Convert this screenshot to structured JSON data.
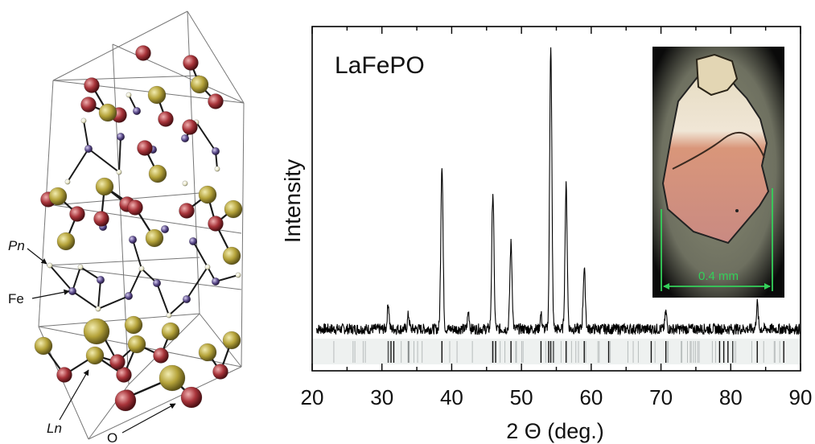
{
  "structure": {
    "labels": {
      "pn": "Pn",
      "fe": "Fe",
      "ln": "Ln",
      "o": "O"
    },
    "colors": {
      "ln": "#b5a33a",
      "o": "#a8343a",
      "fe": "#5a4a8a",
      "pn": "#e8e6c8",
      "cell": "#777777"
    }
  },
  "chart_data": {
    "type": "line",
    "title": "LaFePO",
    "xlabel": "2 Θ (deg.)",
    "ylabel": "Intensity",
    "xlim": [
      20,
      90
    ],
    "xticks": [
      20,
      30,
      40,
      50,
      60,
      70,
      80,
      90
    ],
    "yticks_labeled": false,
    "peaks": [
      {
        "x": 30.9,
        "h": 0.09
      },
      {
        "x": 33.8,
        "h": 0.05
      },
      {
        "x": 38.6,
        "h": 0.58
      },
      {
        "x": 42.4,
        "h": 0.06
      },
      {
        "x": 45.9,
        "h": 0.48
      },
      {
        "x": 48.5,
        "h": 0.3
      },
      {
        "x": 52.8,
        "h": 0.05
      },
      {
        "x": 54.2,
        "h": 1.0
      },
      {
        "x": 56.4,
        "h": 0.5
      },
      {
        "x": 59.0,
        "h": 0.21
      },
      {
        "x": 70.7,
        "h": 0.06
      },
      {
        "x": 83.8,
        "h": 0.09
      }
    ],
    "reflection_markers": [
      30.9,
      31.3,
      31.7,
      33.8,
      38.6,
      45.9,
      46.3,
      48.5,
      52.8,
      53.9,
      54.2,
      54.6,
      56.4,
      59.0,
      62.5,
      68.6,
      70.7,
      78.4,
      79.0,
      79.6,
      80.3,
      83.8,
      87.6
    ],
    "inset": {
      "scale_label": "0.4 mm",
      "scale_color": "#34d05a"
    },
    "colors": {
      "line": "#000000",
      "frame": "#000000"
    }
  }
}
